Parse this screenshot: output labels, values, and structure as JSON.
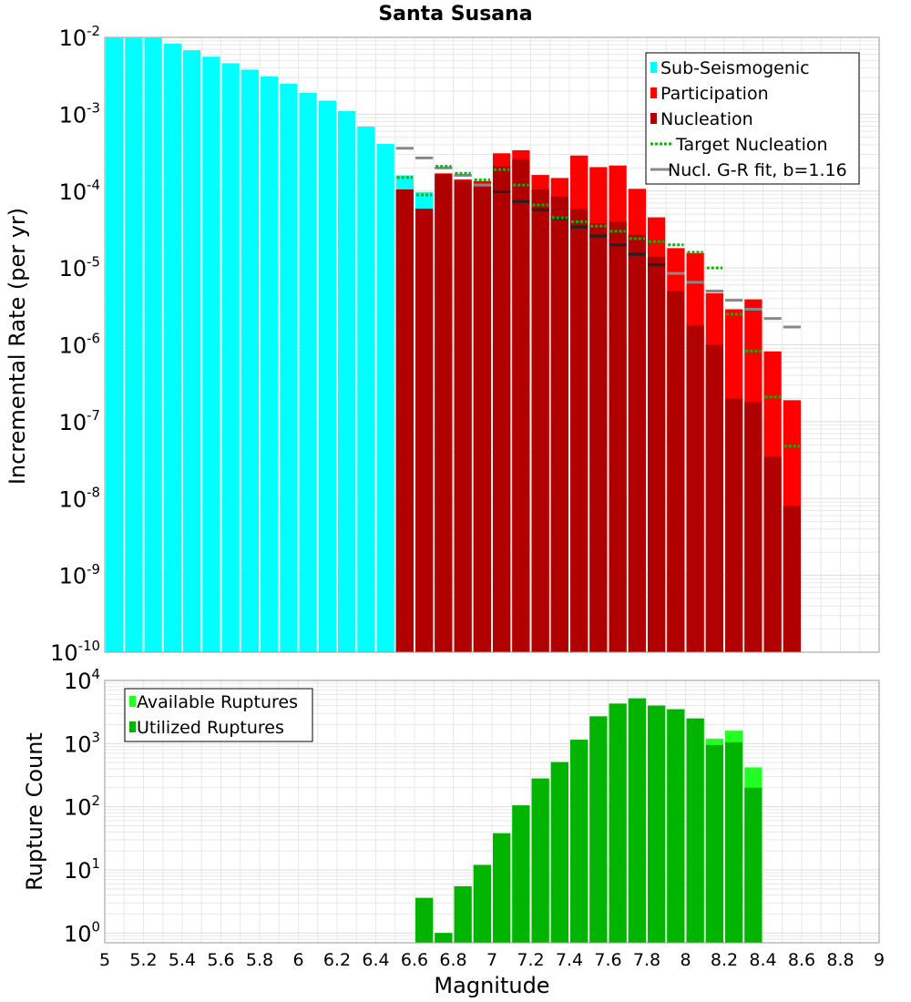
{
  "colors": {
    "sub_seismogenic": "#00ffff",
    "participation": "#ff0000",
    "nucleation": "#b00000",
    "target": "#00bb00",
    "gr_fit": "#888888",
    "gr_fit_dark": "#222222",
    "available": "#22ff22",
    "utilized": "#00b400",
    "grid": "#e8e8e8",
    "axis": "#999999"
  },
  "chart_data": [
    {
      "type": "bar",
      "title": "Santa Susana",
      "xlabel": "",
      "ylabel": "Incremental Rate (per yr)",
      "xlim": [
        5,
        9
      ],
      "ylim": [
        1e-10,
        0.01
      ],
      "yscale": "log",
      "grid": true,
      "legend_position": "top-right",
      "ytick_labels": [
        "10-10",
        "10-9",
        "10-8",
        "10-7",
        "10-6",
        "10-5",
        "10-4",
        "10-3",
        "10-2"
      ],
      "legend": [
        "Sub-Seismogenic",
        "Participation",
        "Nucleation",
        "Target Nucleation",
        "Nucl. G-R fit, b=1.16"
      ],
      "bin_width": 0.1,
      "sub_seismogenic": {
        "x": [
          5.05,
          5.15,
          5.25,
          5.35,
          5.45,
          5.55,
          5.65,
          5.75,
          5.85,
          5.95,
          6.05,
          6.15,
          6.25,
          6.35,
          6.45,
          6.55,
          6.65
        ],
        "values": [
          0.0098,
          0.0098,
          0.0098,
          0.0083,
          0.0068,
          0.0056,
          0.0046,
          0.0038,
          0.0031,
          0.0025,
          0.0019,
          0.0015,
          0.0011,
          0.00069,
          0.00041,
          0.00016,
          9.7e-05
        ]
      },
      "participation": {
        "x": [
          6.55,
          6.65,
          6.75,
          6.85,
          6.95,
          7.05,
          7.15,
          7.25,
          7.35,
          7.45,
          7.55,
          7.65,
          7.75,
          7.85,
          7.95,
          8.05,
          8.15,
          8.25,
          8.35,
          8.45,
          8.55
        ],
        "values": [
          0.000105,
          5.9e-05,
          0.00017,
          0.000142,
          0.000135,
          0.00031,
          0.00034,
          0.000162,
          0.000148,
          0.00029,
          0.000205,
          0.000215,
          0.000107,
          4.55e-05,
          1.81e-05,
          1.56e-05,
          4.7e-06,
          2.9e-06,
          3.9e-06,
          8.2e-07,
          1.9e-07
        ]
      },
      "nucleation": {
        "x": [
          6.55,
          6.65,
          6.75,
          6.85,
          6.95,
          7.05,
          7.15,
          7.25,
          7.35,
          7.45,
          7.55,
          7.65,
          7.75,
          7.85,
          7.95,
          8.05,
          8.15,
          8.25,
          8.35,
          8.45,
          8.55
        ],
        "values": [
          0.000105,
          5.9e-05,
          0.000165,
          0.000135,
          0.000113,
          0.00021,
          0.00026,
          0.000105,
          8.5e-05,
          5.9e-05,
          3.8e-05,
          4e-05,
          2.7e-05,
          1.4e-05,
          5e-06,
          1.8e-06,
          1e-06,
          2e-07,
          1.8e-07,
          3.5e-08,
          8e-09
        ]
      },
      "target_nucleation": {
        "x": [
          6.55,
          6.65,
          6.75,
          6.85,
          6.95,
          7.05,
          7.15,
          7.25,
          7.35,
          7.45,
          7.55,
          7.65,
          7.75,
          7.85,
          7.95,
          8.05,
          8.15,
          8.25,
          8.35,
          8.45,
          8.55
        ],
        "values": [
          0.00015,
          8.9e-05,
          0.00021,
          0.00017,
          0.00014,
          0.00019,
          0.00012,
          6.6e-05,
          4.5e-05,
          4e-05,
          3.5e-05,
          3e-05,
          2.4e-05,
          2.2e-05,
          2e-05,
          1.6e-05,
          1e-05,
          2.5e-06,
          8.3e-07,
          2.1e-07,
          4.8e-08
        ]
      },
      "gr_fit": {
        "b_value": 1.16,
        "x": [
          6.55,
          6.65,
          6.75,
          6.85,
          6.95,
          7.05,
          7.15,
          7.25,
          7.35,
          7.45,
          7.55,
          7.65,
          7.75,
          7.85,
          7.95,
          8.05,
          8.15,
          8.25,
          8.35,
          8.45,
          8.55
        ],
        "values": [
          0.00036,
          0.00027,
          0.0002,
          0.00016,
          0.00012,
          9.8e-05,
          7.3e-05,
          5.7e-05,
          4.4e-05,
          3.4e-05,
          2.6e-05,
          2e-05,
          1.5e-05,
          1.1e-05,
          8.5e-06,
          6.5e-06,
          5e-06,
          3.8e-06,
          2.9e-06,
          2.2e-06,
          1.7e-06
        ]
      }
    },
    {
      "type": "bar",
      "title": "",
      "xlabel": "Magnitude",
      "ylabel": "Rupture Count",
      "xlim": [
        5,
        9
      ],
      "ylim": [
        0.7,
        10000
      ],
      "yscale": "log",
      "grid": true,
      "legend_position": "top-left",
      "ytick_labels": [
        "100",
        "101",
        "102",
        "103",
        "104"
      ],
      "xtick_labels": [
        "5",
        "5.2",
        "5.4",
        "5.6",
        "5.8",
        "6",
        "6.2",
        "6.4",
        "6.6",
        "6.8",
        "7",
        "7.2",
        "7.4",
        "7.6",
        "7.8",
        "8",
        "8.2",
        "8.4",
        "8.6",
        "8.8",
        "9"
      ],
      "legend": [
        "Available Ruptures",
        "Utilized Ruptures"
      ],
      "available": {
        "x": [
          6.65,
          6.75,
          6.85,
          6.95,
          7.05,
          7.15,
          7.25,
          7.35,
          7.45,
          7.55,
          7.65,
          7.75,
          7.85,
          7.95,
          8.05,
          8.15,
          8.25,
          8.35
        ],
        "values": [
          3.6,
          1.0,
          5.5,
          12,
          38,
          105,
          280,
          510,
          1150,
          2700,
          4300,
          5200,
          4000,
          3500,
          2500,
          1200,
          1600,
          420
        ]
      },
      "utilized": {
        "x": [
          6.65,
          6.75,
          6.85,
          6.95,
          7.05,
          7.15,
          7.25,
          7.35,
          7.45,
          7.55,
          7.65,
          7.75,
          7.85,
          7.95,
          8.05,
          8.15,
          8.25,
          8.35
        ],
        "values": [
          3.6,
          1.0,
          5.5,
          12,
          38,
          105,
          280,
          510,
          1150,
          2700,
          4300,
          5200,
          4000,
          3500,
          2500,
          950,
          1050,
          200
        ]
      }
    }
  ]
}
